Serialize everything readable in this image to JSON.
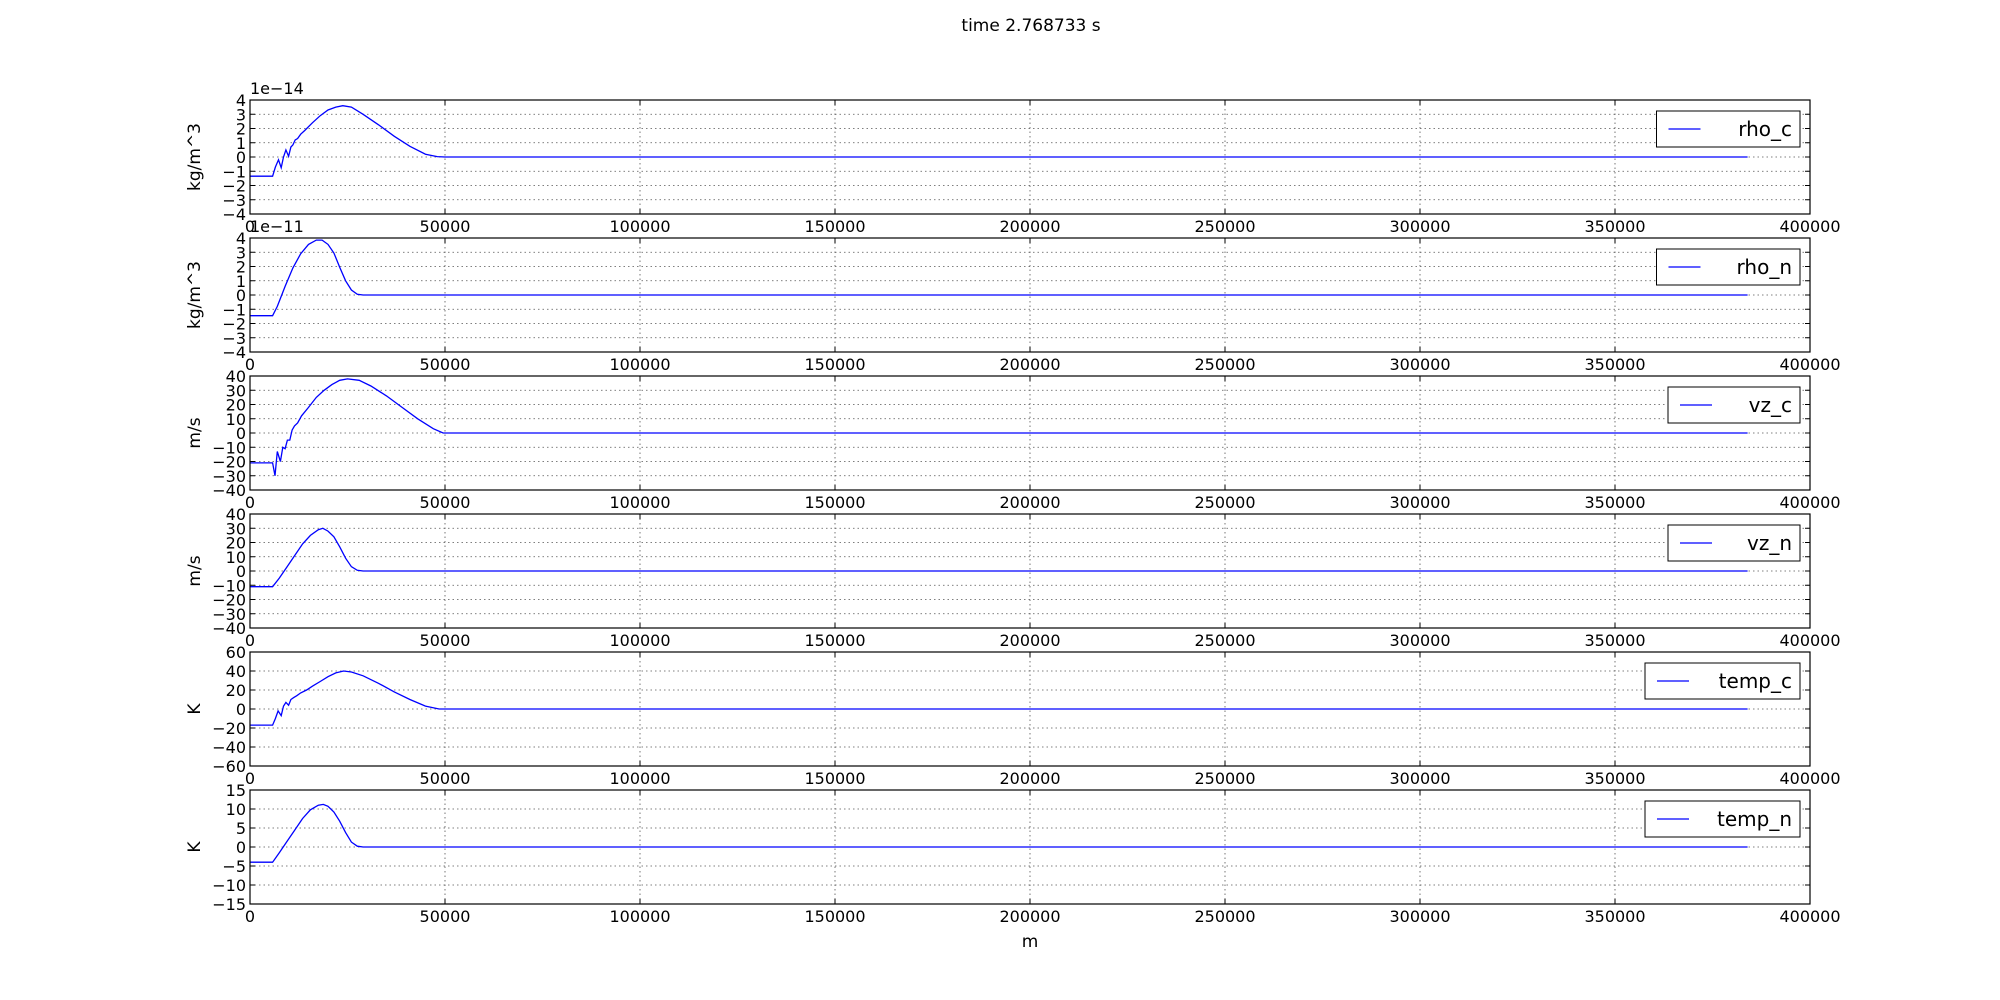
{
  "figure_title": "time 2.768733 s",
  "xlabel": "m",
  "colors": {
    "line": "#0000ff",
    "grid": "#555555",
    "axes": "#000000"
  },
  "chart_data": [
    {
      "type": "line",
      "ylabel": "kg/m^3",
      "offset_text": "1e−14",
      "legend": "top-right",
      "grid": true,
      "xlim": [
        0,
        400000
      ],
      "ylim": [
        -4,
        4
      ],
      "xticks": [
        "0",
        "50000",
        "100000",
        "150000",
        "200000",
        "250000",
        "300000",
        "350000",
        "400000"
      ],
      "yticks": [
        "−4",
        "−3",
        "−2",
        "−1",
        "0",
        "1",
        "2",
        "3",
        "4"
      ],
      "series": [
        {
          "name": "rho_c",
          "x": [
            0,
            5800,
            6500,
            7300,
            8000,
            8600,
            9200,
            9900,
            10500,
            11000,
            11600,
            12200,
            13000,
            14000,
            16000,
            18000,
            20000,
            22000,
            23800,
            26000,
            29000,
            33000,
            37000,
            41000,
            45000,
            48000,
            50000,
            55000,
            100000,
            200000,
            300000,
            384000
          ],
          "y": [
            -1.35,
            -1.35,
            -0.7,
            -0.2,
            -0.75,
            0.0,
            0.5,
            0.05,
            0.7,
            0.85,
            1.2,
            1.3,
            1.6,
            1.85,
            2.4,
            2.9,
            3.3,
            3.5,
            3.6,
            3.5,
            3.0,
            2.25,
            1.45,
            0.75,
            0.2,
            0.03,
            0,
            0,
            0,
            0,
            0,
            0
          ]
        }
      ]
    },
    {
      "type": "line",
      "ylabel": "kg/m^3",
      "offset_text": "1e−11",
      "legend": "top-right",
      "grid": true,
      "xlim": [
        0,
        400000
      ],
      "ylim": [
        -4,
        4
      ],
      "xticks": [
        "0",
        "50000",
        "100000",
        "150000",
        "200000",
        "250000",
        "300000",
        "350000",
        "400000"
      ],
      "yticks": [
        "−4",
        "−3",
        "−2",
        "−1",
        "0",
        "1",
        "2",
        "3",
        "4"
      ],
      "series": [
        {
          "name": "rho_n",
          "x": [
            0,
            5800,
            7000,
            9000,
            11000,
            13000,
            15000,
            17000,
            18500,
            20000,
            21500,
            23000,
            24500,
            26000,
            27500,
            29000,
            31000,
            50000,
            100000,
            200000,
            300000,
            384000
          ],
          "y": [
            -1.45,
            -1.45,
            -0.8,
            0.6,
            1.9,
            2.9,
            3.55,
            3.85,
            3.85,
            3.55,
            2.95,
            1.95,
            1.0,
            0.35,
            0.05,
            0.0,
            0,
            0,
            0,
            0,
            0,
            0
          ]
        }
      ]
    },
    {
      "type": "line",
      "ylabel": "m/s",
      "legend": "top-right",
      "grid": true,
      "xlim": [
        0,
        400000
      ],
      "ylim": [
        -40,
        40
      ],
      "xticks": [
        "0",
        "50000",
        "100000",
        "150000",
        "200000",
        "250000",
        "300000",
        "350000",
        "400000"
      ],
      "yticks": [
        "−40",
        "−30",
        "−20",
        "−10",
        "0",
        "10",
        "20",
        "30",
        "40"
      ],
      "series": [
        {
          "name": "vz_c",
          "x": [
            0,
            5800,
            6400,
            7000,
            7800,
            8400,
            9000,
            9600,
            10200,
            10800,
            11400,
            12200,
            13200,
            15000,
            17000,
            19000,
            21000,
            23000,
            25000,
            28000,
            31000,
            35000,
            39000,
            43000,
            47000,
            49500,
            52000,
            100000,
            200000,
            300000,
            384000
          ],
          "y": [
            -21,
            -21,
            -30,
            -13,
            -20,
            -10,
            -11,
            -5,
            -5,
            2,
            5,
            7,
            12,
            18,
            25,
            30,
            34,
            37,
            38,
            37,
            33,
            26,
            18,
            10,
            3,
            0,
            0,
            0,
            0,
            0,
            0
          ]
        }
      ]
    },
    {
      "type": "line",
      "ylabel": "m/s",
      "legend": "top-right",
      "grid": true,
      "xlim": [
        0,
        400000
      ],
      "ylim": [
        -40,
        40
      ],
      "xticks": [
        "0",
        "50000",
        "100000",
        "150000",
        "200000",
        "250000",
        "300000",
        "350000",
        "400000"
      ],
      "yticks": [
        "−40",
        "−30",
        "−20",
        "−10",
        "0",
        "10",
        "20",
        "30",
        "40"
      ],
      "series": [
        {
          "name": "vz_n",
          "x": [
            0,
            5800,
            7500,
            9500,
            11500,
            13500,
            15500,
            17500,
            18700,
            20000,
            21500,
            23000,
            24500,
            26000,
            27500,
            29000,
            31000,
            50000,
            100000,
            200000,
            300000,
            384000
          ],
          "y": [
            -11,
            -11,
            -5,
            3,
            11,
            19,
            25,
            29,
            30,
            28,
            24,
            17,
            9,
            3,
            0.5,
            0,
            0,
            0,
            0,
            0,
            0,
            0
          ]
        }
      ]
    },
    {
      "type": "line",
      "ylabel": "K",
      "legend": "top-right",
      "grid": true,
      "xlim": [
        0,
        400000
      ],
      "ylim": [
        -60,
        60
      ],
      "xticks": [
        "0",
        "50000",
        "100000",
        "150000",
        "200000",
        "250000",
        "300000",
        "350000",
        "400000"
      ],
      "yticks": [
        "−60",
        "−40",
        "−20",
        "0",
        "20",
        "40",
        "60"
      ],
      "series": [
        {
          "name": "temp_c",
          "x": [
            0,
            5800,
            6500,
            7200,
            8000,
            8600,
            9200,
            9900,
            10500,
            11200,
            12000,
            13000,
            14500,
            16000,
            18000,
            20000,
            22000,
            24000,
            26000,
            29000,
            33000,
            37000,
            41000,
            45000,
            48500,
            51000,
            100000,
            200000,
            300000,
            384000
          ],
          "y": [
            -17,
            -17,
            -10,
            -2,
            -7,
            3,
            7,
            4,
            10,
            12,
            14,
            17,
            20,
            24,
            29,
            34,
            38,
            40,
            39,
            35,
            27,
            18,
            10,
            3,
            0,
            0,
            0,
            0,
            0,
            0
          ]
        }
      ]
    },
    {
      "type": "line",
      "ylabel": "K",
      "legend": "top-right",
      "grid": true,
      "xlim": [
        0,
        400000
      ],
      "ylim": [
        -15,
        15
      ],
      "xticks": [
        "0",
        "50000",
        "100000",
        "150000",
        "200000",
        "250000",
        "300000",
        "350000",
        "400000"
      ],
      "yticks": [
        "−15",
        "−10",
        "−5",
        "0",
        "5",
        "10",
        "15"
      ],
      "series": [
        {
          "name": "temp_n",
          "x": [
            0,
            5800,
            7500,
            9500,
            11500,
            13500,
            15500,
            17500,
            18800,
            20000,
            21500,
            23000,
            24500,
            26000,
            27500,
            29000,
            31000,
            50000,
            100000,
            200000,
            300000,
            384000
          ],
          "y": [
            -4,
            -4,
            -1.5,
            1.5,
            4.5,
            7.5,
            9.8,
            11,
            11.2,
            10.7,
            9.2,
            6.8,
            3.8,
            1.3,
            0.2,
            0,
            0,
            0,
            0,
            0,
            0,
            0
          ]
        }
      ]
    }
  ]
}
